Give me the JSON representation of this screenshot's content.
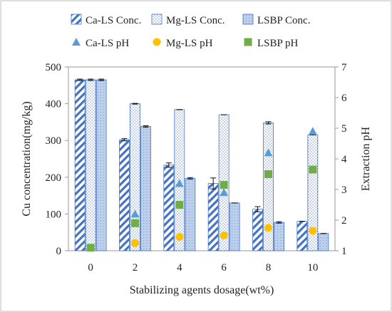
{
  "chart_data": {
    "type": "bar",
    "xlabel": "Stabilizing agents dosage(wt%)",
    "ylabel": "Cu concentration(mg/kg)",
    "y2label": "Extraction pH",
    "categories": [
      "0",
      "2",
      "4",
      "6",
      "8",
      "10"
    ],
    "ylim": [
      0,
      500
    ],
    "yticks": [
      "0",
      "100",
      "200",
      "300",
      "400",
      "500"
    ],
    "y2lim": [
      1,
      7
    ],
    "y2ticks": [
      "1",
      "2",
      "3",
      "4",
      "5",
      "6",
      "7"
    ],
    "grid": false,
    "legend_position": "top",
    "series": [
      {
        "name": "Ca-LS Conc.",
        "kind": "bar",
        "pattern": "diagonal-stripes",
        "color": "#4472C4",
        "values": [
          465,
          302,
          233,
          183,
          113,
          80
        ],
        "errors": [
          2,
          3,
          6,
          15,
          7,
          0
        ]
      },
      {
        "name": "Mg-LS Conc.",
        "kind": "bar",
        "pattern": "dots",
        "color": "#4472C4",
        "values": [
          465,
          400,
          384,
          370,
          348,
          315
        ],
        "errors": [
          2,
          1,
          0,
          0,
          3,
          0
        ]
      },
      {
        "name": "LSBP Conc.",
        "kind": "bar",
        "pattern": "light-blue-fill",
        "color": "#4472C4",
        "values": [
          465,
          338,
          197,
          130,
          77,
          47
        ],
        "errors": [
          2,
          2,
          2,
          0,
          2,
          0
        ]
      },
      {
        "name": "Ca-LS pH",
        "kind": "marker",
        "shape": "triangle",
        "color": "#5B9BD5",
        "axis": "y2",
        "values": [
          null,
          2.2,
          3.2,
          2.9,
          4.2,
          4.9
        ]
      },
      {
        "name": "Mg-LS pH",
        "kind": "marker",
        "shape": "circle",
        "color": "#FFC000",
        "axis": "y2",
        "values": [
          null,
          1.25,
          1.45,
          1.5,
          1.75,
          1.65
        ]
      },
      {
        "name": "LSBP pH",
        "kind": "marker",
        "shape": "square",
        "color": "#70AD47",
        "axis": "y2",
        "values": [
          1.1,
          1.9,
          2.5,
          3.15,
          3.5,
          3.65
        ]
      }
    ]
  }
}
